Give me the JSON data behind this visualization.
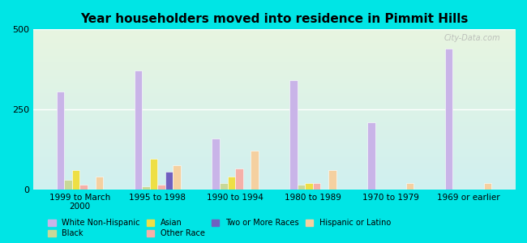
{
  "title": "Year householders moved into residence in Pimmit Hills",
  "categories": [
    "1999 to March\n2000",
    "1995 to 1998",
    "1990 to 1994",
    "1980 to 1989",
    "1970 to 1979",
    "1969 or earlier"
  ],
  "series": {
    "White Non-Hispanic": [
      305,
      370,
      160,
      340,
      210,
      440
    ],
    "Black": [
      30,
      10,
      20,
      15,
      0,
      0
    ],
    "Asian": [
      60,
      95,
      40,
      20,
      0,
      0
    ],
    "Other Race": [
      15,
      15,
      65,
      20,
      0,
      0
    ],
    "Two or More Races": [
      0,
      55,
      0,
      0,
      0,
      0
    ],
    "Hispanic or Latino": [
      40,
      75,
      120,
      60,
      20,
      20
    ]
  },
  "colors": {
    "White Non-Hispanic": "#c9b4e8",
    "Black": "#c8d898",
    "Asian": "#eedf45",
    "Other Race": "#f5b0a8",
    "Two or More Races": "#7060c0",
    "Hispanic or Latino": "#f5d0a0"
  },
  "ylim": [
    0,
    500
  ],
  "yticks": [
    0,
    250,
    500
  ],
  "bar_width": 0.1,
  "background_color": "#00e5e5",
  "watermark": "City-Data.com",
  "legend_row1": [
    "White Non-Hispanic",
    "Black",
    "Asian",
    "Other Race"
  ],
  "legend_row2": [
    "Two or More Races",
    "Hispanic or Latino"
  ]
}
